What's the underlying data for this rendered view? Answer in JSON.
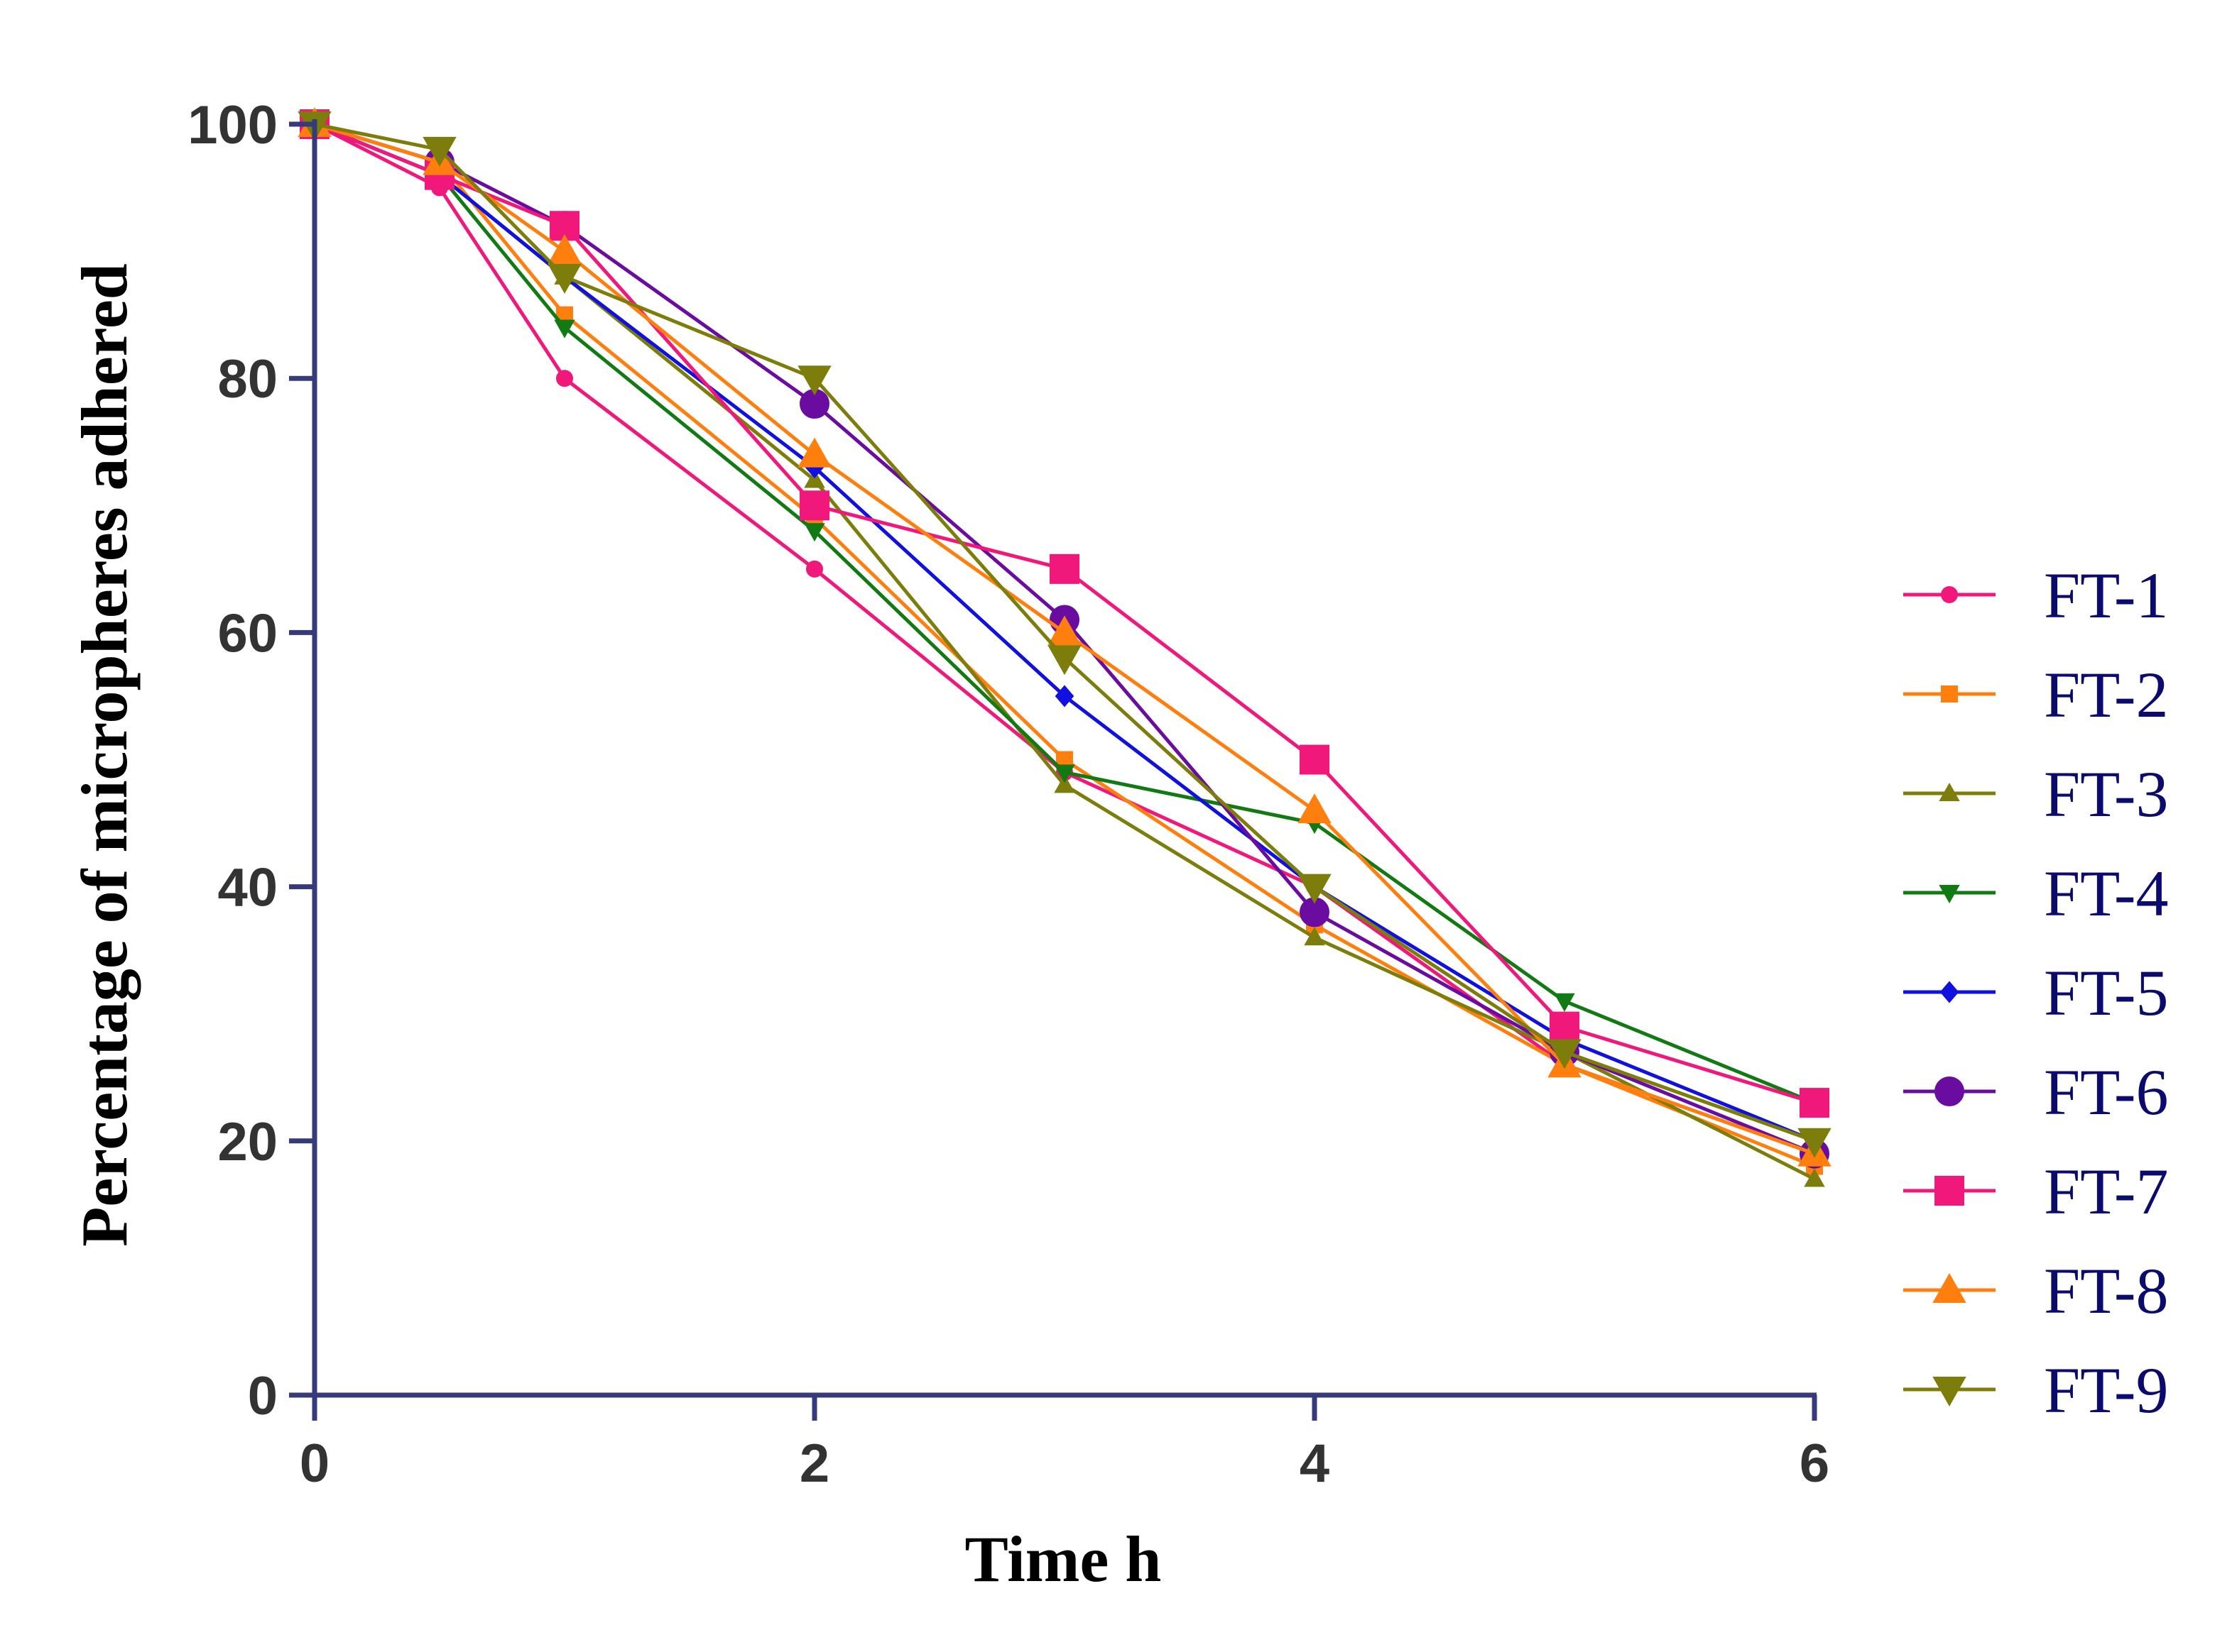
{
  "chart_data": {
    "type": "line",
    "title": "",
    "xlabel": "Time h",
    "ylabel": "Percentage of micropheres adhered",
    "xlim": [
      0,
      6
    ],
    "ylim": [
      0,
      100
    ],
    "xticks": [
      "0",
      "2",
      "4",
      "6"
    ],
    "xtick_values": [
      0,
      2,
      4,
      6
    ],
    "yticks": [
      "0",
      "20",
      "40",
      "60",
      "80",
      "100"
    ],
    "ytick_values": [
      0,
      20,
      40,
      60,
      80,
      100
    ],
    "legend_position": "right",
    "grid": false,
    "axis_color": "#363a7a",
    "x": [
      0,
      0.5,
      1,
      2,
      3,
      4,
      5,
      6
    ],
    "series": [
      {
        "name": "FT-1",
        "color": "#f0187a",
        "marker": "circle-small",
        "values": [
          100,
          95,
          80,
          65,
          49,
          40,
          26,
          19
        ]
      },
      {
        "name": "FT-2",
        "color": "#ff7f0e",
        "marker": "square-small",
        "values": [
          100,
          97,
          85,
          69,
          50,
          37,
          26,
          18
        ]
      },
      {
        "name": "FT-3",
        "color": "#7d7d0c",
        "marker": "triangle-up-small",
        "values": [
          100,
          96,
          88,
          72,
          48,
          36,
          27,
          17
        ]
      },
      {
        "name": "FT-4",
        "color": "#127a12",
        "marker": "triangle-down-small",
        "values": [
          100,
          96,
          84,
          68,
          49,
          45,
          31,
          23
        ]
      },
      {
        "name": "FT-5",
        "color": "#1010e0",
        "marker": "diamond-small",
        "values": [
          100,
          96,
          88,
          73,
          55,
          40,
          28,
          20
        ]
      },
      {
        "name": "FT-6",
        "color": "#6a0ca0",
        "marker": "circle-large",
        "values": [
          100,
          97,
          92,
          78,
          61,
          38,
          27,
          19
        ]
      },
      {
        "name": "FT-7",
        "color": "#f0187a",
        "marker": "square-large",
        "values": [
          100,
          96,
          92,
          70,
          65,
          50,
          29,
          23
        ]
      },
      {
        "name": "FT-8",
        "color": "#ff7f0e",
        "marker": "triangle-up-large",
        "values": [
          100,
          97,
          90,
          74,
          60,
          46,
          26,
          19
        ]
      },
      {
        "name": "FT-9",
        "color": "#7d7d0c",
        "marker": "triangle-down-large",
        "values": [
          100,
          98,
          88,
          80,
          58,
          40,
          27,
          20
        ]
      }
    ]
  }
}
